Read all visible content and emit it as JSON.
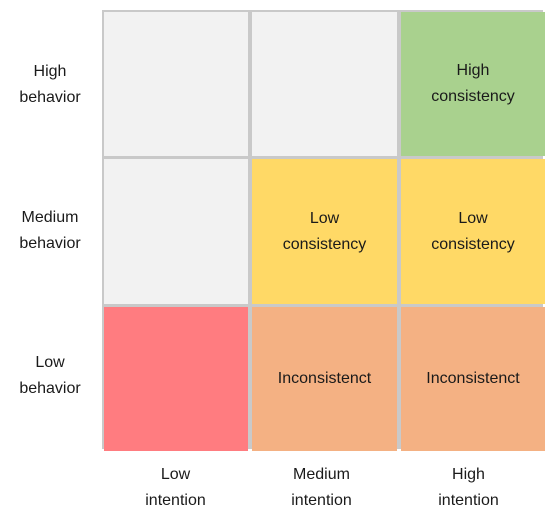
{
  "row_labels": {
    "high": "High\nbehavior",
    "medium": "Medium\nbehavior",
    "low": "Low\nbehavior"
  },
  "col_labels": {
    "low": "Low\nintention",
    "medium": "Medium\nintention",
    "high": "High\nintention"
  },
  "cells": {
    "high_behavior_low_intention": "",
    "high_behavior_medium_intention": "",
    "high_behavior_high_intention": "High\nconsistency",
    "medium_behavior_low_intention": "",
    "medium_behavior_medium_intention": "Low\nconsistency",
    "medium_behavior_high_intention": "Low\nconsistency",
    "low_behavior_low_intention": "",
    "low_behavior_medium_intention": "Inconsistenct",
    "low_behavior_high_intention": "Inconsistenct"
  },
  "colors": {
    "empty": "#f2f2f2",
    "green": "#a9d18e",
    "yellow": "#ffd966",
    "orange": "#f4b183",
    "red": "#ff7c80",
    "gridline": "#c9c9c9"
  }
}
